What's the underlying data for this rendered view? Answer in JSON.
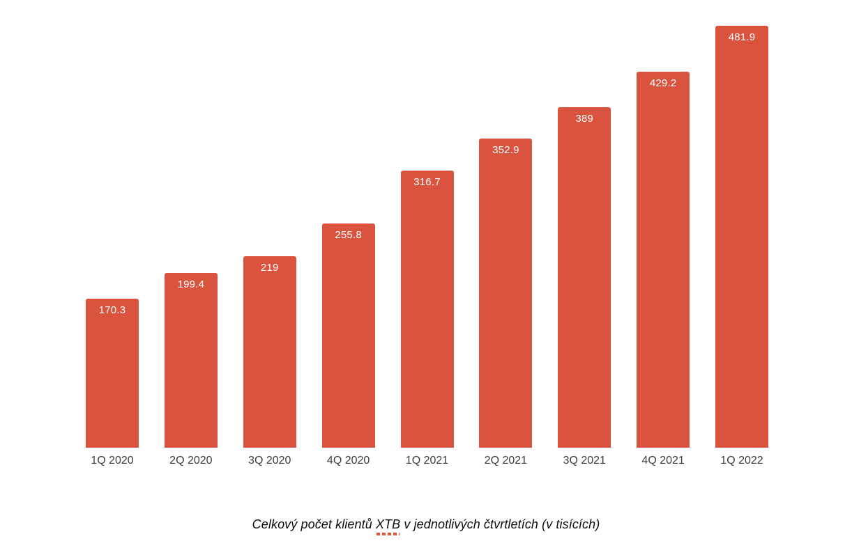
{
  "chart_data": {
    "type": "bar",
    "categories": [
      "1Q 2020",
      "2Q 2020",
      "3Q 2020",
      "4Q 2020",
      "1Q 2021",
      "2Q 2021",
      "3Q 2021",
      "4Q 2021",
      "1Q 2022"
    ],
    "values": [
      170.3,
      199.4,
      219,
      255.8,
      316.7,
      352.9,
      389,
      429.2,
      481.9
    ],
    "value_labels": [
      "170.3",
      "199.4",
      "219",
      "255.8",
      "316.7",
      "352.9",
      "389",
      "429.2",
      "481.9"
    ],
    "title": "Celkový počet klientů XTB v jednotlivých čtvrtletích (v tisících)",
    "xlabel": "",
    "ylabel": "",
    "ylim": [
      0,
      482
    ],
    "grid": false,
    "legend": false,
    "axes_lines_visible": false,
    "value_label_position": "inside-top"
  },
  "caption": {
    "prefix": "Celkový počet klientů ",
    "highlight": "XTB",
    "suffix": " v jednotlivých čtvrtletích (v tisících)"
  },
  "colors": {
    "bar": "#d9533e",
    "value_label": "#ffffff",
    "axis_label": "#3c3c3c",
    "caption_text": "#0b0b0b",
    "highlight_underline": "#e4553f",
    "background": "#ffffff"
  }
}
